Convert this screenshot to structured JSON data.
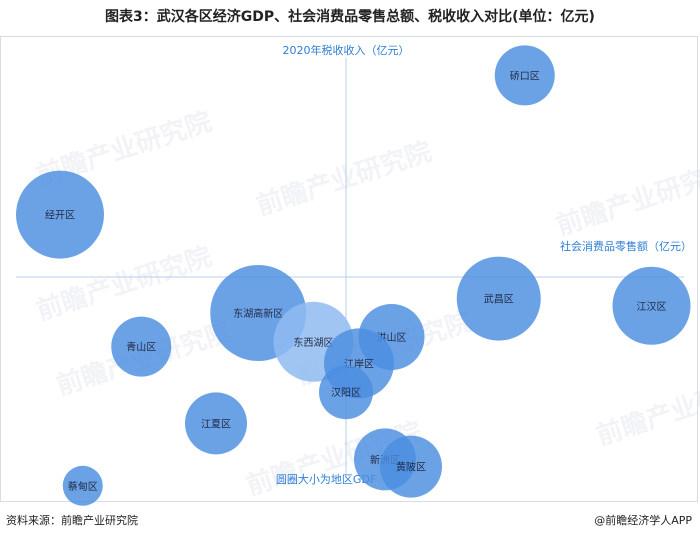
{
  "title": "图表3：武汉各区经济GDP、社会消费品零售总额、税收收入对比(单位：亿元)",
  "footer": {
    "source": "资料来源：前瞻产业研究院",
    "brand": "@前瞻经济学人APP"
  },
  "watermark": "前瞻产业研究院",
  "chart_data": {
    "type": "bubble",
    "x_label": "社会消费品零售额（亿元）",
    "y_label": "2020年税收收入（亿元）",
    "size_label": "圆圈大小为地区GDF",
    "bubbles": [
      {
        "name": "硚口区",
        "x": 0.55,
        "y": 0.84,
        "size": 30
      },
      {
        "name": "经开区",
        "x": -0.88,
        "y": 0.26,
        "size": 44
      },
      {
        "name": "武昌区",
        "x": 0.47,
        "y": -0.09,
        "size": 42
      },
      {
        "name": "江汉区",
        "x": 0.94,
        "y": -0.12,
        "size": 39
      },
      {
        "name": "东湖高新区",
        "x": -0.27,
        "y": -0.15,
        "size": 48
      },
      {
        "name": "东西湖区",
        "x": -0.1,
        "y": -0.27,
        "size": 40
      },
      {
        "name": "青山区",
        "x": -0.63,
        "y": -0.29,
        "size": 30
      },
      {
        "name": "洪山区",
        "x": 0.14,
        "y": -0.25,
        "size": 33
      },
      {
        "name": "江岸区",
        "x": 0.04,
        "y": -0.36,
        "size": 35
      },
      {
        "name": "汉阳区",
        "x": 0.0,
        "y": -0.48,
        "size": 27
      },
      {
        "name": "江夏区",
        "x": -0.4,
        "y": -0.61,
        "size": 31
      },
      {
        "name": "新洲区",
        "x": 0.12,
        "y": -0.76,
        "size": 31
      },
      {
        "name": "黄陂区",
        "x": 0.2,
        "y": -0.79,
        "size": 31
      },
      {
        "name": "蔡甸区",
        "x": -0.81,
        "y": -0.87,
        "size": 20
      }
    ],
    "color": "#4a8ee0",
    "highlight_color": "#8fbbf0"
  }
}
